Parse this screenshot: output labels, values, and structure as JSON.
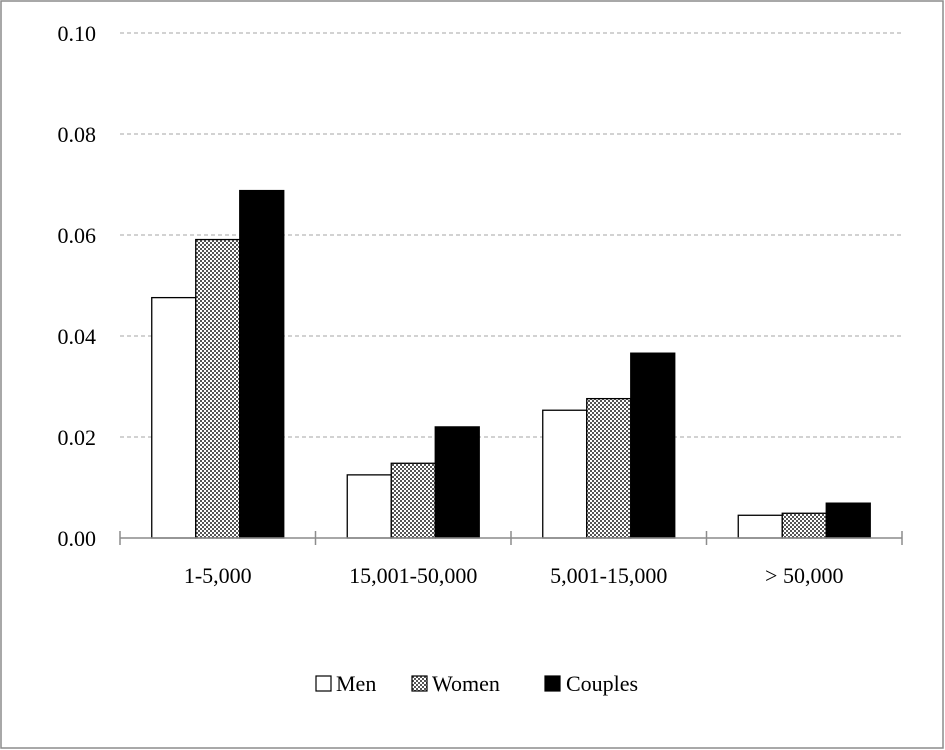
{
  "chart_data": {
    "type": "bar",
    "categories": [
      "1-5,000",
      "15,001-50,000",
      "5,001-15,000",
      "> 50,000"
    ],
    "series": [
      {
        "name": "Men",
        "values": [
          0.0476,
          0.0125,
          0.0253,
          0.0045
        ],
        "color": "#ffffff",
        "fill": "solid-white"
      },
      {
        "name": "Women",
        "values": [
          0.0591,
          0.0148,
          0.0276,
          0.0049
        ],
        "color": "#9a9a9a",
        "fill": "checker-pattern"
      },
      {
        "name": "Couples",
        "values": [
          0.0688,
          0.022,
          0.0366,
          0.0069
        ],
        "color": "#000000",
        "fill": "solid-black"
      }
    ],
    "title": "",
    "xlabel": "",
    "ylabel": "",
    "ylim": [
      0,
      0.1
    ],
    "yticks": [
      "0.00",
      "0.02",
      "0.04",
      "0.06",
      "0.08",
      "0.10"
    ],
    "grid": true,
    "legend_placement": "bottom-center"
  }
}
